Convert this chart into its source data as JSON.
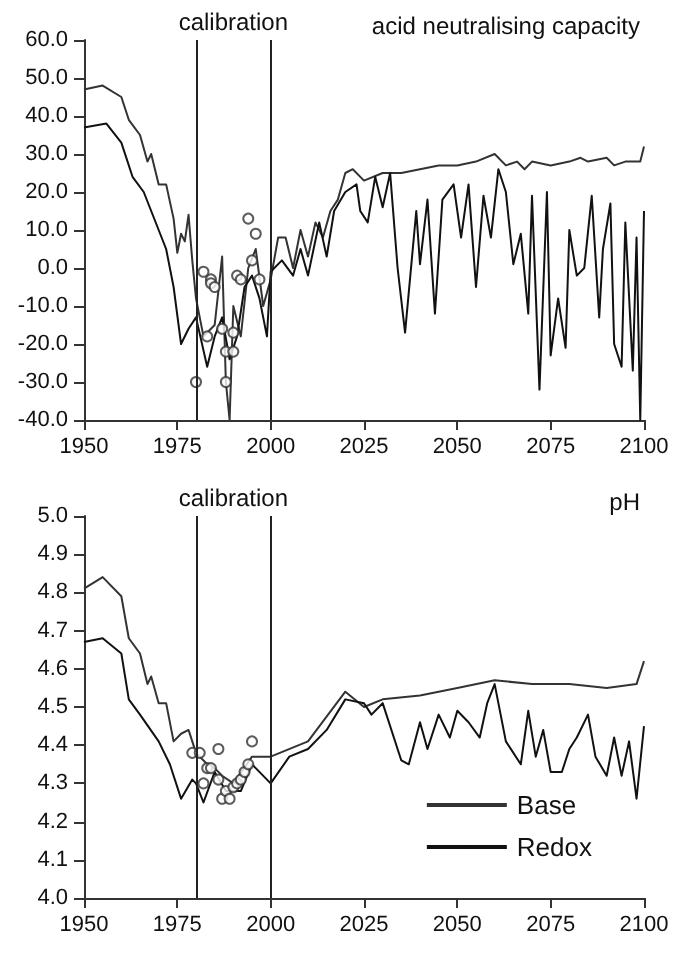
{
  "chart_data": [
    {
      "type": "line",
      "title": "acid neutralising capacity",
      "xlim": [
        1950,
        2100
      ],
      "xticks": [
        1950,
        1975,
        2000,
        2025,
        2050,
        2075,
        2100
      ],
      "ylim": [
        -40,
        60
      ],
      "yticks": [
        {
          "value": -40,
          "label": "-40.0"
        },
        {
          "value": -30,
          "label": "-30.0"
        },
        {
          "value": -20,
          "label": "-20.0"
        },
        {
          "value": -10,
          "label": "-10.0"
        },
        {
          "value": 0,
          "label": "0.0"
        },
        {
          "value": 10,
          "label": "10.0"
        },
        {
          "value": 20,
          "label": "20.0"
        },
        {
          "value": 30,
          "label": "30.0"
        },
        {
          "value": 40,
          "label": "40.0"
        },
        {
          "value": 50,
          "label": "50.0"
        },
        {
          "value": 60,
          "label": "60.0"
        }
      ],
      "grid": false,
      "legend": false,
      "ref_lines": [
        {
          "axis": "x",
          "value": 1980,
          "color": "#222222"
        },
        {
          "axis": "x",
          "value": 2000,
          "color": "#222222"
        }
      ],
      "annotations": [
        "calibration"
      ],
      "series": [
        {
          "color": "#333333",
          "x": [
            1950,
            1955,
            1960,
            1962,
            1965,
            1967,
            1968,
            1970,
            1972,
            1974,
            1975,
            1976,
            1977,
            1978,
            1979,
            1980,
            1982,
            1985,
            1987,
            1988,
            1989,
            1990,
            1992,
            1994,
            1996,
            1998,
            2000,
            2002,
            2004,
            2006,
            2008,
            2010,
            2012,
            2014,
            2016,
            2018,
            2020,
            2022,
            2025,
            2030,
            2035,
            2040,
            2045,
            2050,
            2055,
            2060,
            2063,
            2066,
            2068,
            2070,
            2075,
            2080,
            2083,
            2085,
            2090,
            2092,
            2095,
            2099,
            2100
          ],
          "values": [
            47,
            48,
            45,
            39,
            35,
            28,
            30,
            22,
            22,
            13,
            4,
            9,
            7,
            14,
            2,
            -8,
            -18,
            -15,
            3,
            -30,
            -40,
            -10,
            -18,
            0,
            5,
            -10,
            -3,
            8,
            8,
            0,
            10,
            3,
            12,
            8,
            15,
            18,
            25,
            26,
            23,
            25,
            25,
            26,
            27,
            27,
            28,
            30,
            27,
            28,
            26,
            28,
            27,
            28,
            29,
            28,
            29,
            27,
            28,
            28,
            32
          ]
        },
        {
          "color": "#111111",
          "x": [
            1950,
            1956,
            1960,
            1963,
            1966,
            1968,
            1970,
            1972,
            1974,
            1976,
            1978,
            1980,
            1983,
            1985,
            1987,
            1989,
            1991,
            1993,
            1995,
            1997,
            1999,
            2000,
            2003,
            2006,
            2008,
            2010,
            2013,
            2015,
            2017,
            2020,
            2023,
            2024,
            2026,
            2028,
            2030,
            2032,
            2034,
            2036,
            2039,
            2040,
            2042,
            2044,
            2046,
            2049,
            2051,
            2053,
            2055,
            2057,
            2059,
            2061,
            2063,
            2065,
            2067,
            2069,
            2070,
            2072,
            2074,
            2075,
            2077,
            2079,
            2080,
            2082,
            2084,
            2086,
            2088,
            2089,
            2091,
            2092,
            2094,
            2095,
            2097,
            2098,
            2099,
            2100
          ],
          "values": [
            37,
            38,
            33,
            24,
            20,
            15,
            10,
            5,
            -5,
            -20,
            -16,
            -13,
            -26,
            -18,
            -13,
            -24,
            -18,
            -5,
            -2,
            -8,
            -18,
            -1,
            2,
            -2,
            5,
            -2,
            12,
            3,
            15,
            20,
            22,
            15,
            12,
            24,
            16,
            25,
            0,
            -17,
            15,
            1,
            18,
            -12,
            18,
            22,
            8,
            22,
            -5,
            19,
            8,
            26,
            20,
            1,
            9,
            -12,
            19,
            -32,
            20,
            -23,
            -8,
            -21,
            10,
            -2,
            0,
            19,
            -13,
            5,
            17,
            -20,
            -26,
            12,
            -27,
            8,
            -40,
            15
          ]
        },
        {
          "type": "scatter",
          "color": "#333333",
          "x": [
            1980,
            1982,
            1983,
            1984,
            1984,
            1985,
            1987,
            1988,
            1988,
            1990,
            1990,
            1991,
            1992,
            1994,
            1995,
            1996,
            1997
          ],
          "values": [
            -30,
            -1,
            -18,
            -3,
            -4,
            -5,
            -16,
            -30,
            -22,
            -22,
            -17,
            -2,
            -3,
            13,
            2,
            9,
            -3
          ]
        }
      ]
    },
    {
      "type": "line",
      "title": "pH",
      "xlim": [
        1950,
        2100
      ],
      "xticks": [
        1950,
        1975,
        2000,
        2025,
        2050,
        2075,
        2100
      ],
      "ylim": [
        4.0,
        5.0
      ],
      "yticks": [
        {
          "value": 4.0,
          "label": "4.0"
        },
        4.1,
        4.2,
        4.3,
        4.4,
        4.5,
        4.6,
        4.7,
        4.8,
        4.9,
        {
          "value": 5.0,
          "label": "5.0"
        }
      ],
      "grid": false,
      "legend": "bottom right",
      "ref_lines": [
        {
          "axis": "x",
          "value": 1980,
          "color": "#222222"
        },
        {
          "axis": "x",
          "value": 2000,
          "color": "#222222"
        }
      ],
      "annotations": [
        "calibration"
      ],
      "series": [
        {
          "name": "Base",
          "color": "#333333",
          "x": [
            1950,
            1955,
            1960,
            1962,
            1965,
            1967,
            1968,
            1970,
            1972,
            1974,
            1976,
            1978,
            1980,
            1983,
            1985,
            1987,
            1990,
            1995,
            2000,
            2010,
            2020,
            2025,
            2030,
            2040,
            2050,
            2060,
            2070,
            2080,
            2090,
            2098,
            2100
          ],
          "values": [
            4.81,
            4.84,
            4.79,
            4.68,
            4.64,
            4.56,
            4.58,
            4.51,
            4.51,
            4.41,
            4.43,
            4.44,
            4.38,
            4.35,
            4.34,
            4.32,
            4.3,
            4.37,
            4.37,
            4.41,
            4.54,
            4.5,
            4.52,
            4.53,
            4.55,
            4.57,
            4.56,
            4.56,
            4.55,
            4.56,
            4.62
          ]
        },
        {
          "name": "Redox",
          "color": "#111111",
          "x": [
            1950,
            1955,
            1960,
            1962,
            1965,
            1970,
            1973,
            1976,
            1979,
            1980,
            1982,
            1985,
            1988,
            1992,
            1995,
            2000,
            2005,
            2010,
            2015,
            2020,
            2025,
            2027,
            2030,
            2035,
            2037,
            2040,
            2042,
            2045,
            2048,
            2050,
            2053,
            2056,
            2058,
            2060,
            2063,
            2067,
            2069,
            2071,
            2073,
            2075,
            2078,
            2080,
            2082,
            2085,
            2087,
            2090,
            2092,
            2094,
            2096,
            2098,
            2100
          ],
          "values": [
            4.67,
            4.68,
            4.64,
            4.52,
            4.48,
            4.41,
            4.35,
            4.26,
            4.31,
            4.3,
            4.25,
            4.33,
            4.28,
            4.28,
            4.35,
            4.3,
            4.37,
            4.39,
            4.44,
            4.52,
            4.51,
            4.48,
            4.51,
            4.36,
            4.35,
            4.46,
            4.39,
            4.48,
            4.42,
            4.49,
            4.46,
            4.42,
            4.51,
            4.56,
            4.41,
            4.35,
            4.49,
            4.37,
            4.44,
            4.33,
            4.33,
            4.39,
            4.42,
            4.48,
            4.37,
            4.32,
            4.42,
            4.32,
            4.41,
            4.26,
            4.45
          ]
        },
        {
          "type": "scatter",
          "color": "#333333",
          "x": [
            1979,
            1981,
            1982,
            1983,
            1984,
            1986,
            1986,
            1987,
            1988,
            1989,
            1990,
            1991,
            1992,
            1993,
            1994,
            1995
          ],
          "values": [
            4.38,
            4.38,
            4.3,
            4.34,
            4.34,
            4.39,
            4.31,
            4.26,
            4.28,
            4.26,
            4.29,
            4.3,
            4.31,
            4.33,
            4.35,
            4.41
          ]
        }
      ]
    }
  ]
}
